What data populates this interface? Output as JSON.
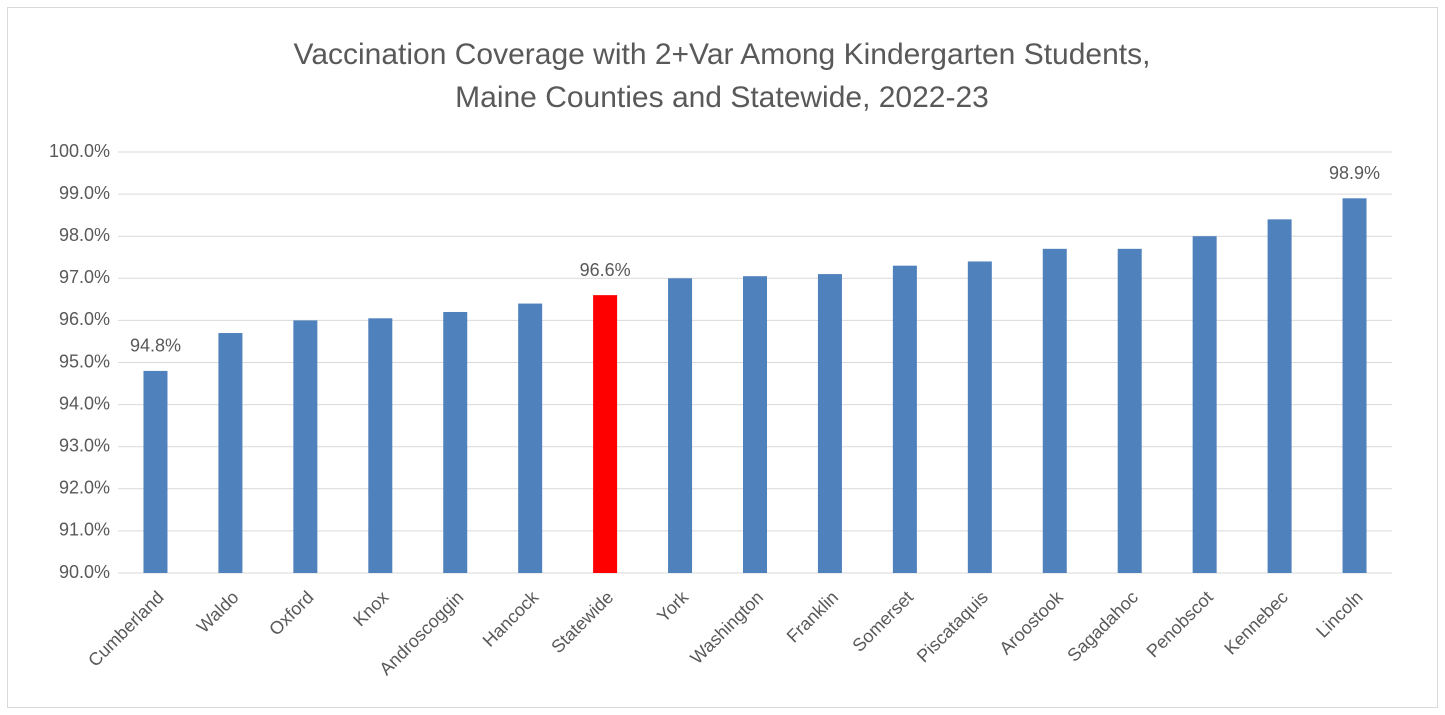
{
  "chart_data": {
    "type": "bar",
    "title": [
      "Vaccination Coverage with 2+Var Among Kindergarten Students,",
      "Maine Counties and Statewide, 2022-23"
    ],
    "categories": [
      "Cumberland",
      "Waldo",
      "Oxford",
      "Knox",
      "Androscoggin",
      "Hancock",
      "Statewide",
      "York",
      "Washington",
      "Franklin",
      "Somerset",
      "Piscataquis",
      "Aroostook",
      "Sagadahoc",
      "Penobscot",
      "Kennebec",
      "Lincoln"
    ],
    "values": [
      94.8,
      95.7,
      96.0,
      96.05,
      96.2,
      96.4,
      96.6,
      97.0,
      97.05,
      97.1,
      97.3,
      97.4,
      97.7,
      97.7,
      98.0,
      98.4,
      98.9
    ],
    "value_labels": [
      "94.8%",
      null,
      null,
      null,
      null,
      null,
      "96.6%",
      null,
      null,
      null,
      null,
      null,
      null,
      null,
      null,
      null,
      "98.9%"
    ],
    "colors": [
      "#4f81bd",
      "#4f81bd",
      "#4f81bd",
      "#4f81bd",
      "#4f81bd",
      "#4f81bd",
      "#ff0000",
      "#4f81bd",
      "#4f81bd",
      "#4f81bd",
      "#4f81bd",
      "#4f81bd",
      "#4f81bd",
      "#4f81bd",
      "#4f81bd",
      "#4f81bd",
      "#4f81bd"
    ],
    "ylim": [
      90,
      100
    ],
    "yticks": [
      {
        "value": 90,
        "label": "90.0%"
      },
      {
        "value": 91,
        "label": "91.0%"
      },
      {
        "value": 92,
        "label": "92.0%"
      },
      {
        "value": 93,
        "label": "93.0%"
      },
      {
        "value": 94,
        "label": "94.0%"
      },
      {
        "value": 95,
        "label": "95.0%"
      },
      {
        "value": 96,
        "label": "96.0%"
      },
      {
        "value": 97,
        "label": "97.0%"
      },
      {
        "value": 98,
        "label": "98.0%"
      },
      {
        "value": 99,
        "label": "99.0%"
      },
      {
        "value": 100,
        "label": "100.0%"
      }
    ],
    "grid": true
  }
}
